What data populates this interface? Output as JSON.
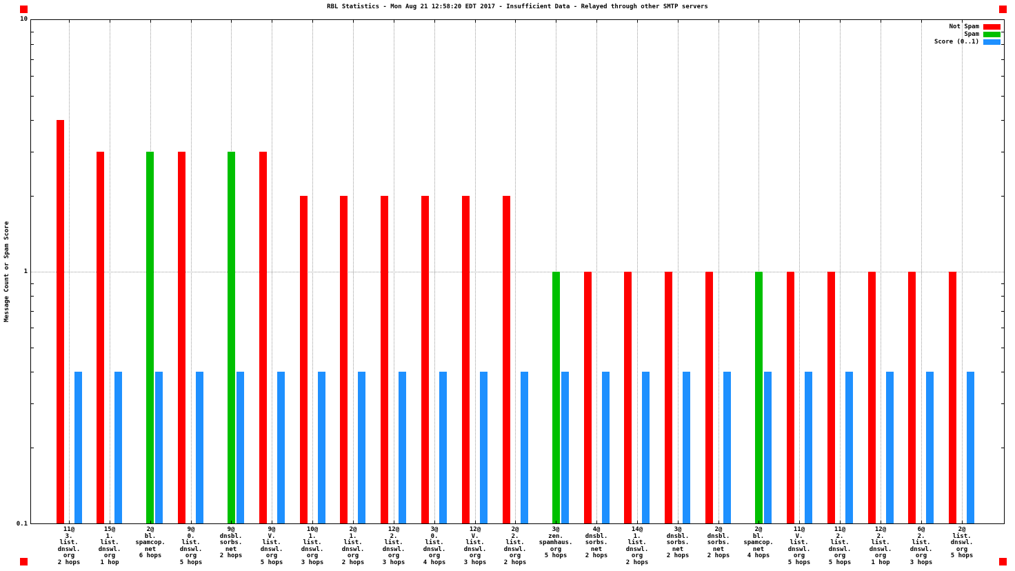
{
  "corner_marker_color": "#ff0000",
  "chart_data": {
    "type": "bar",
    "title": "RBL Statistics - Mon Aug 21 12:58:20 EDT 2017 - Insufficient Data - Relayed through other SMTP servers",
    "ylabel": "Message Count or Spam Score",
    "xlabel": "",
    "y_scale": "log",
    "ylim": [
      0.1,
      10
    ],
    "y_tick_labels": [
      "10",
      "1",
      "0.1"
    ],
    "grid": true,
    "legend_position": "top-right",
    "series_names": [
      "Not Spam",
      "Spam",
      "Score (0..1)"
    ],
    "legend": [
      {
        "label": "Not Spam",
        "color": "#ff0000"
      },
      {
        "label": "Spam",
        "color": "#00c000"
      },
      {
        "label": "Score (0..1)",
        "color": "#1e90ff"
      }
    ],
    "groups": [
      {
        "label": "11@3.list.dnswl.org 2 hops",
        "lines": [
          "11@",
          "3.",
          "list.",
          "dnswl.",
          "org",
          "2 hops"
        ],
        "not_spam": 4,
        "spam": null,
        "score": 0.4
      },
      {
        "label": "15@1.list.dnswl.org 1 hop",
        "lines": [
          "15@",
          "1.",
          "list.",
          "dnswl.",
          "org",
          "1 hop"
        ],
        "not_spam": 3,
        "spam": null,
        "score": 0.4
      },
      {
        "label": "2@bl.spamcop.net 6 hops",
        "lines": [
          "2@",
          "bl.",
          "spamcop.",
          "net",
          "6 hops"
        ],
        "not_spam": null,
        "spam": 3,
        "score": 0.4
      },
      {
        "label": "9@0.list.dnswl.org 5 hops",
        "lines": [
          "9@",
          "0.",
          "list.",
          "dnswl.",
          "org",
          "5 hops"
        ],
        "not_spam": 3,
        "spam": null,
        "score": 0.4
      },
      {
        "label": "9@dnsbl.sorbs.net 2 hops",
        "lines": [
          "9@",
          "dnsbl.",
          "sorbs.",
          "net",
          "2 hops"
        ],
        "not_spam": null,
        "spam": 3,
        "score": 0.4
      },
      {
        "label": "9@V.list.dnswl.org 5 hops",
        "lines": [
          "9@",
          "V.",
          "list.",
          "dnswl.",
          "org",
          "5 hops"
        ],
        "not_spam": 3,
        "spam": null,
        "score": 0.4
      },
      {
        "label": "10@1.list.dnswl.org 3 hops",
        "lines": [
          "10@",
          "1.",
          "list.",
          "dnswl.",
          "org",
          "3 hops"
        ],
        "not_spam": 2,
        "spam": null,
        "score": 0.4
      },
      {
        "label": "2@1.list.dnswl.org 2 hops",
        "lines": [
          "2@",
          "1.",
          "list.",
          "dnswl.",
          "org",
          "2 hops"
        ],
        "not_spam": 2,
        "spam": null,
        "score": 0.4
      },
      {
        "label": "12@2.list.dnswl.org 3 hops",
        "lines": [
          "12@",
          "2.",
          "list.",
          "dnswl.",
          "org",
          "3 hops"
        ],
        "not_spam": 2,
        "spam": null,
        "score": 0.4
      },
      {
        "label": "3@0.list.dnswl.org 4 hops",
        "lines": [
          "3@",
          "0.",
          "list.",
          "dnswl.",
          "org",
          "4 hops"
        ],
        "not_spam": 2,
        "spam": null,
        "score": 0.4
      },
      {
        "label": "12@V.list.dnswl.org 3 hops",
        "lines": [
          "12@",
          "V.",
          "list.",
          "dnswl.",
          "org",
          "3 hops"
        ],
        "not_spam": 2,
        "spam": null,
        "score": 0.4
      },
      {
        "label": "2@2.list.dnswl.org 2 hops",
        "lines": [
          "2@",
          "2.",
          "list.",
          "dnswl.",
          "org",
          "2 hops"
        ],
        "not_spam": 2,
        "spam": null,
        "score": 0.4
      },
      {
        "label": "3@zen.spamhaus.org 5 hops",
        "lines": [
          "3@",
          "zen.",
          "spamhaus.",
          "org",
          "5 hops"
        ],
        "not_spam": null,
        "spam": 1,
        "score": 0.4
      },
      {
        "label": "4@dnsbl.sorbs.net 2 hops",
        "lines": [
          "4@",
          "dnsbl.",
          "sorbs.",
          "net",
          "2 hops"
        ],
        "not_spam": 1,
        "spam": null,
        "score": 0.4
      },
      {
        "label": "14@1.list.dnswl.org 2 hops",
        "lines": [
          "14@",
          "1.",
          "list.",
          "dnswl.",
          "org",
          "2 hops"
        ],
        "not_spam": 1,
        "spam": null,
        "score": 0.4
      },
      {
        "label": "3@dnsbl.sorbs.net 2 hops",
        "lines": [
          "3@",
          "dnsbl.",
          "sorbs.",
          "net",
          "2 hops"
        ],
        "not_spam": 1,
        "spam": null,
        "score": 0.4
      },
      {
        "label": "2@dnsbl.sorbs.net 2 hops",
        "lines": [
          "2@",
          "dnsbl.",
          "sorbs.",
          "net",
          "2 hops"
        ],
        "not_spam": 1,
        "spam": null,
        "score": 0.4
      },
      {
        "label": "2@bl.spamcop.net 4 hops",
        "lines": [
          "2@",
          "bl.",
          "spamcop.",
          "net",
          "4 hops"
        ],
        "not_spam": null,
        "spam": 1,
        "score": 0.4
      },
      {
        "label": "11@V.list.dnswl.org 5 hops",
        "lines": [
          "11@",
          "V.",
          "list.",
          "dnswl.",
          "org",
          "5 hops"
        ],
        "not_spam": 1,
        "spam": null,
        "score": 0.4
      },
      {
        "label": "11@2.list.dnswl.org 5 hops",
        "lines": [
          "11@",
          "2.",
          "list.",
          "dnswl.",
          "org",
          "5 hops"
        ],
        "not_spam": 1,
        "spam": null,
        "score": 0.4
      },
      {
        "label": "12@2.list.dnswl.org 1 hop",
        "lines": [
          "12@",
          "2.",
          "list.",
          "dnswl.",
          "org",
          "1 hop"
        ],
        "not_spam": 1,
        "spam": null,
        "score": 0.4
      },
      {
        "label": "6@2.list.dnswl.org 3 hops",
        "lines": [
          "6@",
          "2.",
          "list.",
          "dnswl.",
          "org",
          "3 hops"
        ],
        "not_spam": 1,
        "spam": null,
        "score": 0.4
      },
      {
        "label": "2@list.dnswl.org 5 hops",
        "lines": [
          "2@",
          "list.",
          "dnswl.",
          "org",
          "5 hops"
        ],
        "not_spam": 1,
        "spam": null,
        "score": 0.4
      }
    ]
  }
}
